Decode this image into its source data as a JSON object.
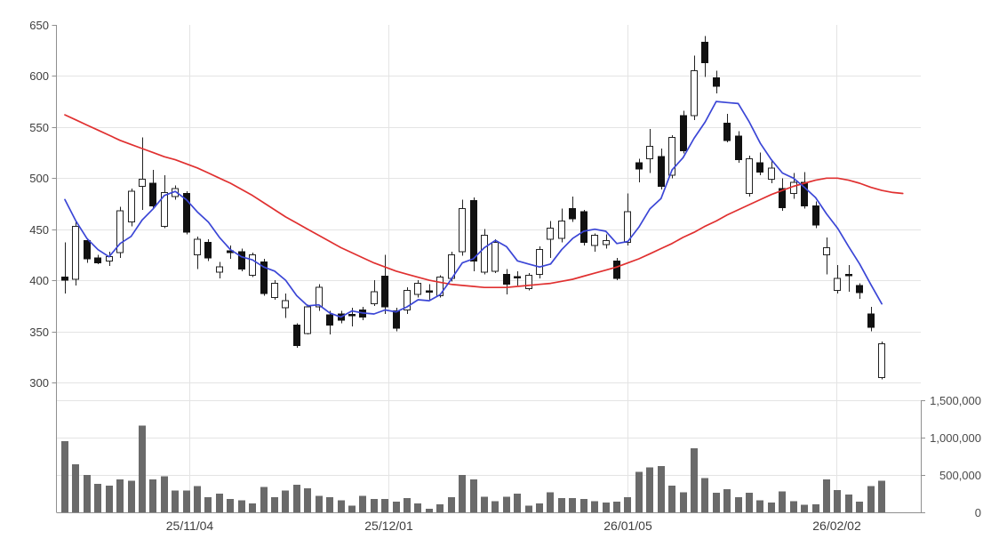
{
  "chart_data": {
    "type": "candlestick",
    "title": "",
    "layout_hint": "daily candlestick price pane with two moving-average overlays, volume bar sub-pane below, price axis left, volume axis right, grid on",
    "price_axis": {
      "side": "left",
      "min": 300,
      "max": 650,
      "ticks": [
        650,
        600,
        550,
        500,
        450,
        400,
        350,
        300
      ]
    },
    "volume_axis": {
      "side": "right",
      "max": 1500000,
      "ticks": [
        {
          "value": 1500000,
          "label": "1,500,000"
        },
        {
          "value": 1000000,
          "label": "1,000,000"
        },
        {
          "value": 500000,
          "label": "500,000"
        },
        {
          "value": 0,
          "label": "0"
        }
      ]
    },
    "x_axis": {
      "ticks": [
        {
          "label": "25/11/04",
          "index": 11.3
        },
        {
          "label": "25/12/01",
          "index": 29.3
        },
        {
          "label": "26/01/05",
          "index": 51.0
        },
        {
          "label": "26/02/02",
          "index": 69.9
        }
      ]
    },
    "candles_ohlcv": [
      [
        403,
        437,
        387,
        400,
        950000
      ],
      [
        401,
        457,
        395,
        453,
        640000
      ],
      [
        439,
        441,
        417,
        421,
        500000
      ],
      [
        422,
        425,
        416,
        417,
        380000
      ],
      [
        419,
        428,
        414,
        423,
        360000
      ],
      [
        427,
        472,
        422,
        468,
        440000
      ],
      [
        457,
        490,
        453,
        487,
        420000
      ],
      [
        492,
        540,
        469,
        499,
        1160000
      ],
      [
        495,
        508,
        470,
        473,
        440000
      ],
      [
        453,
        503,
        451,
        486,
        480000
      ],
      [
        482,
        493,
        479,
        490,
        290000
      ],
      [
        485,
        487,
        445,
        447,
        290000
      ],
      [
        425,
        443,
        411,
        440,
        350000
      ],
      [
        437,
        440,
        419,
        422,
        200000
      ],
      [
        408,
        418,
        402,
        413,
        250000
      ],
      [
        428,
        434,
        421,
        427,
        180000
      ],
      [
        428,
        431,
        409,
        411,
        160000
      ],
      [
        405,
        427,
        403,
        425,
        120000
      ],
      [
        418,
        421,
        385,
        387,
        340000
      ],
      [
        383,
        400,
        381,
        397,
        200000
      ],
      [
        373,
        387,
        363,
        380,
        290000
      ],
      [
        356,
        358,
        334,
        336,
        370000
      ],
      [
        348,
        376,
        347,
        374,
        320000
      ],
      [
        374,
        396,
        370,
        393,
        220000
      ],
      [
        366,
        370,
        347,
        356,
        200000
      ],
      [
        367,
        370,
        358,
        361,
        160000
      ],
      [
        366,
        373,
        355,
        365,
        90000
      ],
      [
        371,
        374,
        361,
        364,
        220000
      ],
      [
        377,
        400,
        375,
        389,
        180000
      ],
      [
        404,
        425,
        367,
        374,
        180000
      ],
      [
        370,
        373,
        350,
        353,
        140000
      ],
      [
        371,
        393,
        367,
        390,
        190000
      ],
      [
        386,
        400,
        383,
        397,
        120000
      ],
      [
        389,
        396,
        381,
        388,
        50000
      ],
      [
        385,
        405,
        383,
        403,
        110000
      ],
      [
        402,
        428,
        399,
        425,
        200000
      ],
      [
        428,
        479,
        424,
        470,
        500000
      ],
      [
        478,
        481,
        409,
        419,
        440000
      ],
      [
        408,
        450,
        406,
        444,
        210000
      ],
      [
        409,
        440,
        407,
        437,
        150000
      ],
      [
        406,
        411,
        386,
        396,
        210000
      ],
      [
        403,
        409,
        395,
        402,
        250000
      ],
      [
        392,
        407,
        390,
        405,
        90000
      ],
      [
        406,
        433,
        402,
        430,
        120000
      ],
      [
        440,
        458,
        422,
        451,
        270000
      ],
      [
        441,
        470,
        437,
        458,
        190000
      ],
      [
        470,
        482,
        457,
        460,
        190000
      ],
      [
        467,
        469,
        434,
        437,
        180000
      ],
      [
        434,
        446,
        428,
        444,
        150000
      ],
      [
        435,
        445,
        431,
        439,
        130000
      ],
      [
        419,
        422,
        400,
        402,
        140000
      ],
      [
        437,
        485,
        434,
        467,
        200000
      ],
      [
        515,
        519,
        496,
        509,
        540000
      ],
      [
        519,
        548,
        505,
        531,
        600000
      ],
      [
        521,
        529,
        489,
        492,
        620000
      ],
      [
        503,
        542,
        500,
        540,
        360000
      ],
      [
        561,
        566,
        524,
        527,
        270000
      ],
      [
        561,
        620,
        557,
        605,
        860000
      ],
      [
        633,
        639,
        599,
        613,
        460000
      ],
      [
        598,
        605,
        583,
        590,
        260000
      ],
      [
        554,
        563,
        535,
        537,
        310000
      ],
      [
        541,
        546,
        515,
        518,
        200000
      ],
      [
        485,
        522,
        482,
        519,
        260000
      ],
      [
        515,
        525,
        503,
        506,
        160000
      ],
      [
        499,
        518,
        495,
        510,
        130000
      ],
      [
        490,
        500,
        468,
        471,
        280000
      ],
      [
        485,
        505,
        480,
        496,
        150000
      ],
      [
        496,
        506,
        470,
        473,
        100000
      ],
      [
        473,
        477,
        451,
        454,
        110000
      ],
      [
        425,
        442,
        406,
        432,
        440000
      ],
      [
        390,
        415,
        387,
        402,
        300000
      ],
      [
        405,
        415,
        389,
        404,
        240000
      ],
      [
        395,
        397,
        382,
        388,
        140000
      ],
      [
        367,
        374,
        350,
        354,
        350000
      ],
      [
        305,
        340,
        303,
        338,
        420000
      ]
    ],
    "ma_fast": {
      "name": "short-term moving average",
      "color": "#3b46d6",
      "values": [
        479,
        458,
        441,
        430,
        423,
        436,
        443,
        459,
        470,
        483,
        487,
        479,
        467,
        457,
        442,
        430,
        423,
        420,
        413,
        409,
        400,
        385,
        375,
        376,
        368,
        364,
        370,
        368,
        367,
        371,
        369,
        374,
        381,
        380,
        386,
        401,
        417,
        421,
        432,
        439,
        433,
        419,
        416,
        413,
        416,
        430,
        441,
        448,
        450,
        448,
        436,
        438,
        452,
        470,
        480,
        508,
        520,
        539,
        555,
        575,
        574,
        573,
        555,
        534,
        518,
        505,
        500,
        491,
        481,
        465,
        451,
        433,
        416,
        396,
        377
      ]
    },
    "ma_slow": {
      "name": "long-term moving average",
      "color": "#e03030",
      "values": [
        562,
        557,
        552,
        547,
        542,
        537,
        533,
        529,
        525,
        521,
        518,
        514,
        510,
        505,
        500,
        495,
        489,
        483,
        476,
        469,
        462,
        456,
        450,
        444,
        438,
        432,
        427,
        422,
        417,
        413,
        409,
        406,
        403,
        400,
        398,
        396,
        395,
        394,
        393,
        393,
        393,
        394,
        395,
        396,
        397,
        399,
        401,
        404,
        407,
        410,
        413,
        417,
        421,
        426,
        431,
        436,
        442,
        447,
        453,
        458,
        464,
        469,
        474,
        479,
        484,
        488,
        492,
        495,
        498,
        500,
        500,
        498,
        495,
        491,
        488
      ],
      "extension": [
        [
          75,
          486
        ],
        [
          75.9,
          485
        ]
      ]
    },
    "colors": {
      "background": "#ffffff",
      "up_fill": "#ffffff",
      "up_stroke": "#222222",
      "down_fill": "#111111",
      "wick": "#222222",
      "volume_bar": "#6a6a6a",
      "grid": "#e4e4e4",
      "axis": "#8f8f8f",
      "tick_label": "#3d3d3d",
      "volume_label": "#4a4a4a"
    }
  }
}
